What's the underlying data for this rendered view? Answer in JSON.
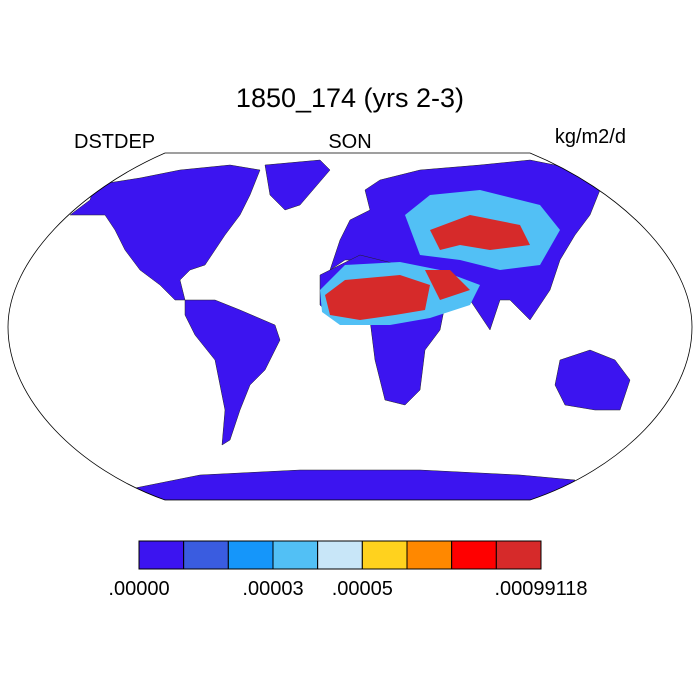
{
  "header": {
    "title": "1850_174 (yrs 2-3)",
    "left_label": "DSTDEP",
    "center_label": "SON",
    "right_label": "kg/m2/d"
  },
  "colorbar": {
    "colors": [
      "#3c14f0",
      "#3a5ce0",
      "#1596fa",
      "#52c0f5",
      "#c8e6f8",
      "#ffd21e",
      "#ff8800",
      "#ff0000",
      "#d62a2a"
    ],
    "labels": [
      ".00000",
      ".00003",
      ".00005",
      ".00099118"
    ]
  }
}
